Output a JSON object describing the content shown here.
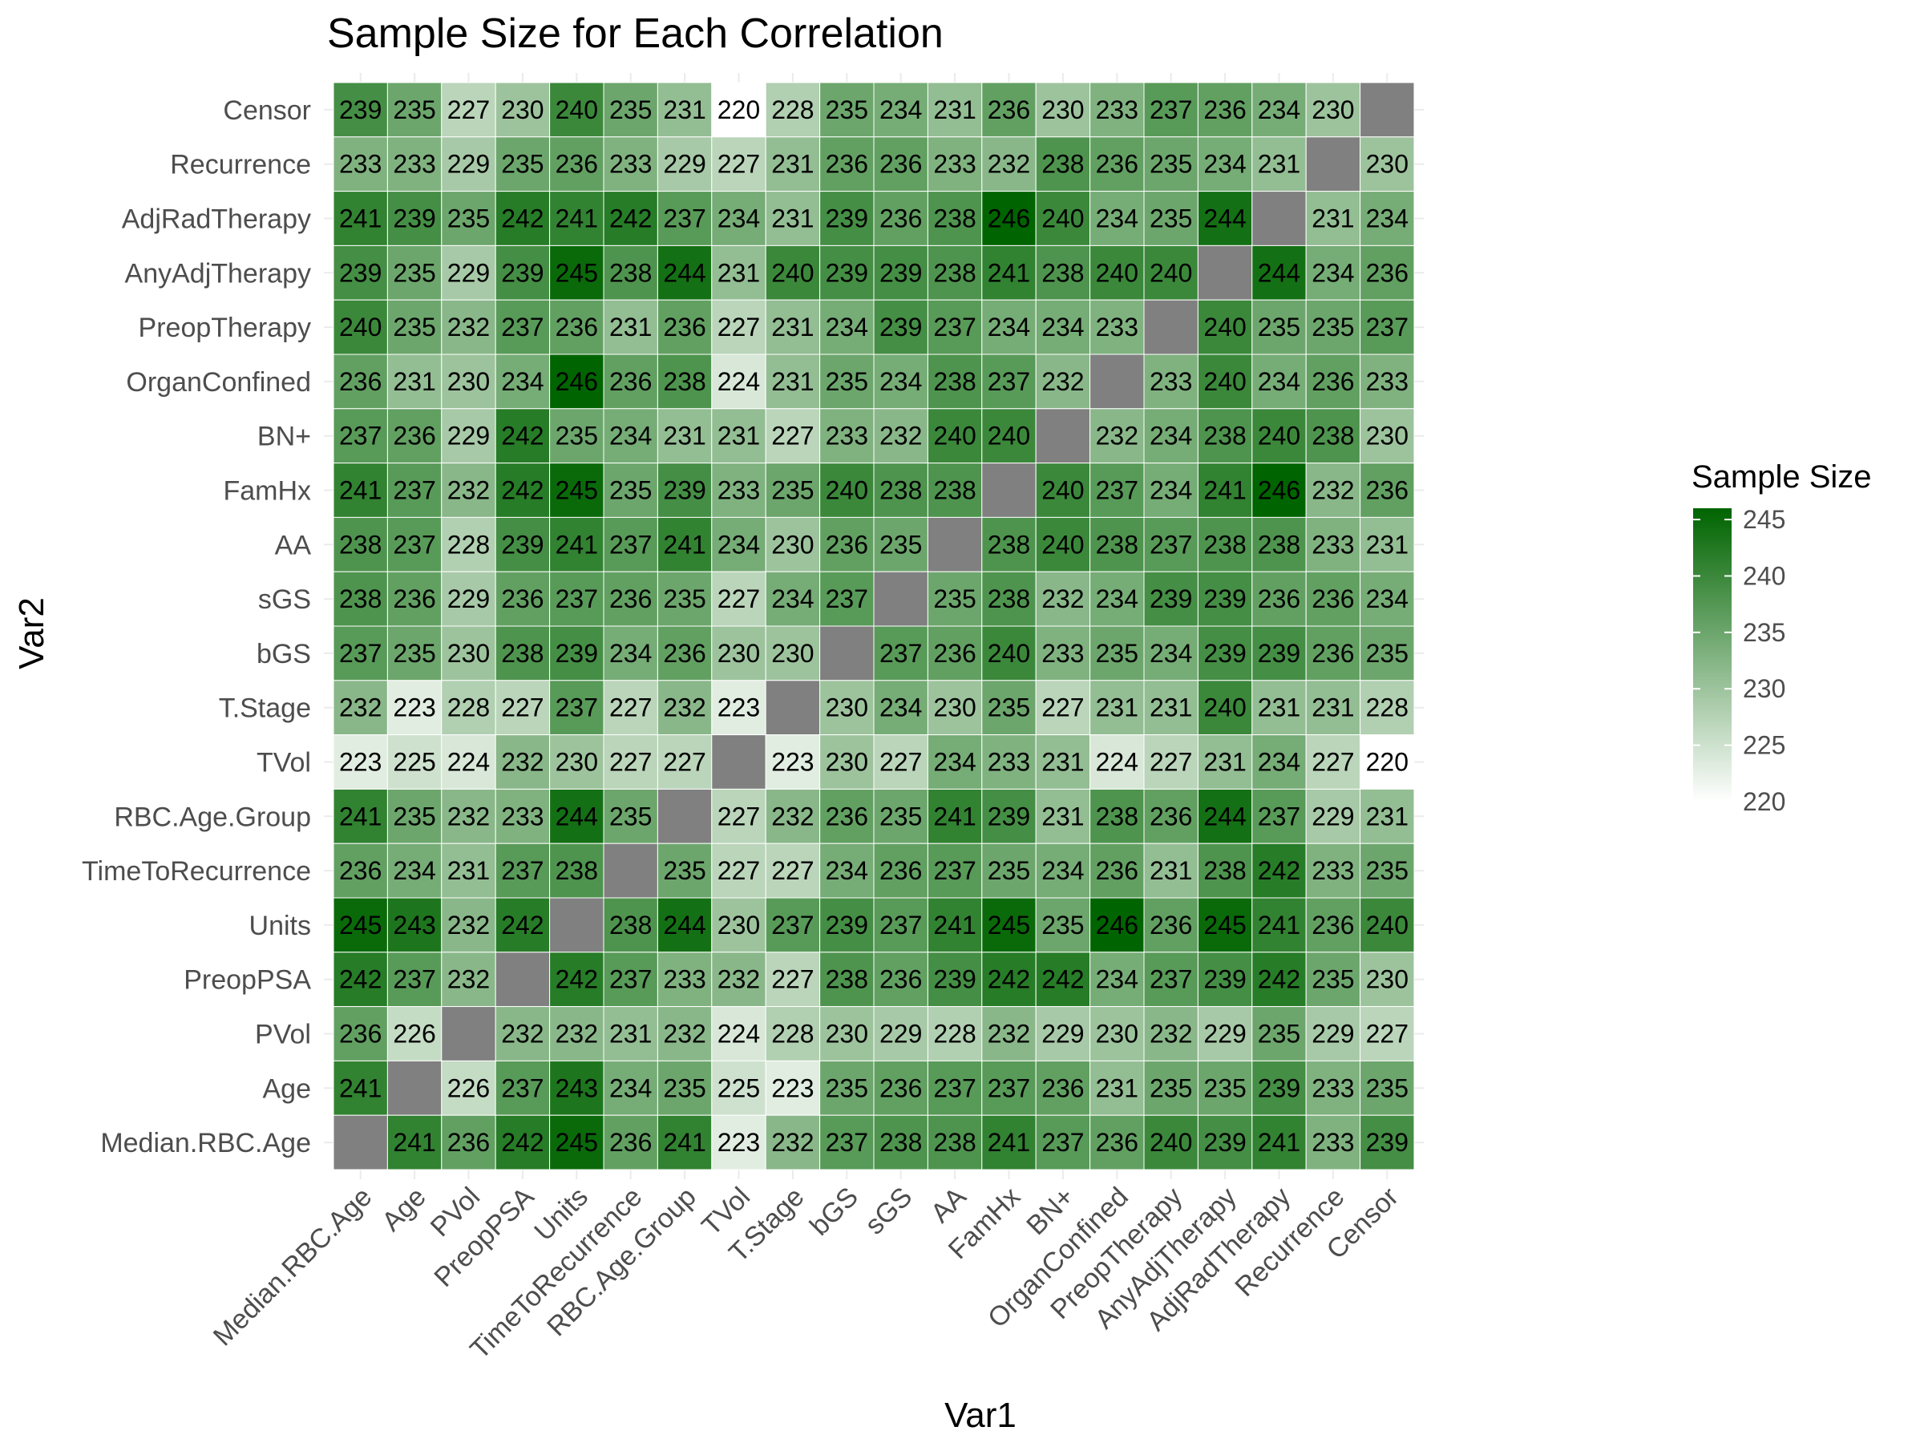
{
  "chart_data": {
    "type": "heatmap",
    "title": "Sample Size for Each Correlation",
    "xlabel": "Var1",
    "ylabel": "Var2",
    "legend": {
      "title": "Sample Size",
      "ticks": [
        245,
        240,
        235,
        230,
        225,
        220
      ],
      "placement": "right"
    },
    "value_range": [
      220,
      246
    ],
    "colors": {
      "low": "#ffffff",
      "high": "#006400",
      "na": "#808080"
    },
    "x": [
      "Median.RBC.Age",
      "Age",
      "PVol",
      "PreopPSA",
      "Units",
      "TimeToRecurrence",
      "RBC.Age.Group",
      "TVol",
      "T.Stage",
      "bGS",
      "sGS",
      "AA",
      "FamHx",
      "BN+",
      "OrganConfined",
      "PreopTherapy",
      "AnyAdjTherapy",
      "AdjRadTherapy",
      "Recurrence",
      "Censor"
    ],
    "y": [
      "Censor",
      "Recurrence",
      "AdjRadTherapy",
      "AnyAdjTherapy",
      "PreopTherapy",
      "OrganConfined",
      "BN+",
      "FamHx",
      "AA",
      "sGS",
      "bGS",
      "T.Stage",
      "TVol",
      "RBC.Age.Group",
      "TimeToRecurrence",
      "Units",
      "PreopPSA",
      "PVol",
      "Age",
      "Median.RBC.Age"
    ],
    "values": [
      [
        239,
        235,
        227,
        230,
        240,
        235,
        231,
        220,
        228,
        235,
        234,
        231,
        236,
        230,
        233,
        237,
        236,
        234,
        230,
        null
      ],
      [
        233,
        233,
        229,
        235,
        236,
        233,
        229,
        227,
        231,
        236,
        236,
        233,
        232,
        238,
        236,
        235,
        234,
        231,
        null,
        230
      ],
      [
        241,
        239,
        235,
        242,
        241,
        242,
        237,
        234,
        231,
        239,
        236,
        238,
        246,
        240,
        234,
        235,
        244,
        null,
        231,
        234
      ],
      [
        239,
        235,
        229,
        239,
        245,
        238,
        244,
        231,
        240,
        239,
        239,
        238,
        241,
        238,
        240,
        240,
        null,
        244,
        234,
        236
      ],
      [
        240,
        235,
        232,
        237,
        236,
        231,
        236,
        227,
        231,
        234,
        239,
        237,
        234,
        234,
        233,
        null,
        240,
        235,
        235,
        237
      ],
      [
        236,
        231,
        230,
        234,
        246,
        236,
        238,
        224,
        231,
        235,
        234,
        238,
        237,
        232,
        null,
        233,
        240,
        234,
        236,
        233
      ],
      [
        237,
        236,
        229,
        242,
        235,
        234,
        231,
        231,
        227,
        233,
        232,
        240,
        240,
        null,
        232,
        234,
        238,
        240,
        238,
        230
      ],
      [
        241,
        237,
        232,
        242,
        245,
        235,
        239,
        233,
        235,
        240,
        238,
        238,
        null,
        240,
        237,
        234,
        241,
        246,
        232,
        236
      ],
      [
        238,
        237,
        228,
        239,
        241,
        237,
        241,
        234,
        230,
        236,
        235,
        null,
        238,
        240,
        238,
        237,
        238,
        238,
        233,
        231
      ],
      [
        238,
        236,
        229,
        236,
        237,
        236,
        235,
        227,
        234,
        237,
        null,
        235,
        238,
        232,
        234,
        239,
        239,
        236,
        236,
        234
      ],
      [
        237,
        235,
        230,
        238,
        239,
        234,
        236,
        230,
        230,
        null,
        237,
        236,
        240,
        233,
        235,
        234,
        239,
        239,
        236,
        235
      ],
      [
        232,
        223,
        228,
        227,
        237,
        227,
        232,
        223,
        null,
        230,
        234,
        230,
        235,
        227,
        231,
        231,
        240,
        231,
        231,
        228
      ],
      [
        223,
        225,
        224,
        232,
        230,
        227,
        227,
        null,
        223,
        230,
        227,
        234,
        233,
        231,
        224,
        227,
        231,
        234,
        227,
        220
      ],
      [
        241,
        235,
        232,
        233,
        244,
        235,
        null,
        227,
        232,
        236,
        235,
        241,
        239,
        231,
        238,
        236,
        244,
        237,
        229,
        231
      ],
      [
        236,
        234,
        231,
        237,
        238,
        null,
        235,
        227,
        227,
        234,
        236,
        237,
        235,
        234,
        236,
        231,
        238,
        242,
        233,
        235
      ],
      [
        245,
        243,
        232,
        242,
        null,
        238,
        244,
        230,
        237,
        239,
        237,
        241,
        245,
        235,
        246,
        236,
        245,
        241,
        236,
        240
      ],
      [
        242,
        237,
        232,
        null,
        242,
        237,
        233,
        232,
        227,
        238,
        236,
        239,
        242,
        242,
        234,
        237,
        239,
        242,
        235,
        230
      ],
      [
        236,
        226,
        null,
        232,
        232,
        231,
        232,
        224,
        228,
        230,
        229,
        228,
        232,
        229,
        230,
        232,
        229,
        235,
        229,
        227
      ],
      [
        241,
        null,
        226,
        237,
        243,
        234,
        235,
        225,
        223,
        235,
        236,
        237,
        237,
        236,
        231,
        235,
        235,
        239,
        233,
        235
      ],
      [
        null,
        241,
        236,
        242,
        245,
        236,
        241,
        223,
        232,
        237,
        238,
        238,
        241,
        237,
        236,
        240,
        239,
        241,
        233,
        239
      ]
    ]
  }
}
